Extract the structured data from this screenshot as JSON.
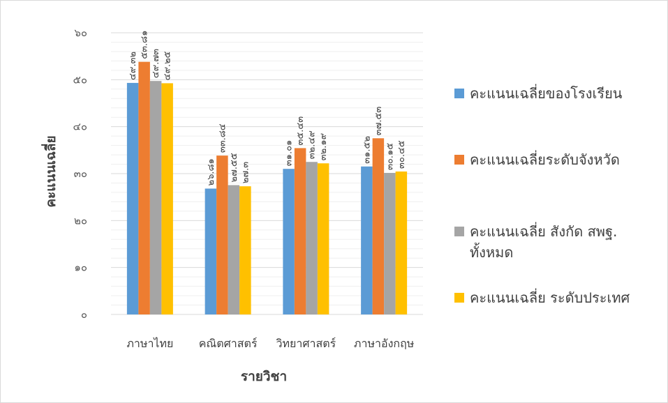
{
  "chart_data": {
    "type": "bar",
    "title": "",
    "xlabel": "รายวิชา",
    "ylabel": "คะแนนเฉลี่ย",
    "ylim": [
      0,
      60
    ],
    "yticks": [
      "๐",
      "๑๐",
      "๒๐",
      "๓๐",
      "๔๐",
      "๕๐",
      "๖๐"
    ],
    "ytick_values": [
      0,
      10,
      20,
      30,
      40,
      50,
      60
    ],
    "grid": true,
    "legend_position": "right",
    "categories": [
      "ภาษาไทย",
      "คณิตศาสตร์",
      "วิทยาศาสตร์",
      "ภาษาอังกฤษ"
    ],
    "series": [
      {
        "name": "คะแนนเฉลี่ยของโรงเรียน",
        "color": "#5B9BD5",
        "values": [
          49.32,
          26.81,
          31.01,
          31.52
        ],
        "labels": [
          "๔๙.๓๒",
          "๒๖.๘๑",
          "๓๑.๐๑",
          "๓๑.๕๒"
        ]
      },
      {
        "name": "คะแนนเฉลี่ยระดับจังหวัด",
        "color": "#ED7D31",
        "values": [
          53.81,
          33.84,
          35.43,
          37.53
        ],
        "labels": [
          "๕๓.๘๑",
          "๓๓.๘๔",
          "๓๕.๔๓",
          "๓๗.๕๓"
        ]
      },
      {
        "name": "คะแนนเฉลี่ย สังกัด สพฐ. ทั้งหมด",
        "color": "#A5A5A5",
        "values": [
          49.73,
          27.55,
          32.49,
          30.15
        ],
        "labels": [
          "๔๙.๗๓",
          "๒๗.๕๕",
          "๓๒.๔๙",
          "๓๐.๑๕"
        ]
      },
      {
        "name": "คะแนนเฉลี่ย ระดับประเทศ",
        "color": "#FFC000",
        "values": [
          49.25,
          27.3,
          32.19,
          30.45
        ],
        "labels": [
          "๔๙.๒๕",
          "๒๗.๓",
          "๓๒.๑๙",
          "๓๐.๔๕"
        ]
      }
    ]
  }
}
